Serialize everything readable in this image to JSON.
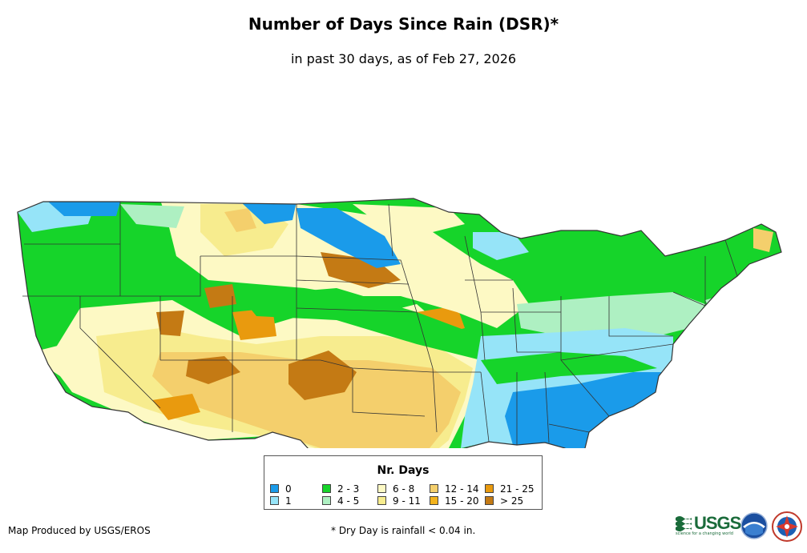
{
  "header": {
    "title": "Number of Days Since Rain (DSR)*",
    "subtitle": "in past 30 days, as of Feb 27, 2026"
  },
  "legend": {
    "title": "Nr. Days",
    "items": [
      {
        "label": "0",
        "color": "#1a9bea"
      },
      {
        "label": "1",
        "color": "#96e4f8"
      },
      {
        "label": "2 - 3",
        "color": "#16d42a"
      },
      {
        "label": "4 - 5",
        "color": "#aef0c2"
      },
      {
        "label": "6 - 8",
        "color": "#fdf9c4"
      },
      {
        "label": "9 - 11",
        "color": "#f7ec8e"
      },
      {
        "label": "12 - 14",
        "color": "#f4cf6c"
      },
      {
        "label": "15 - 20",
        "color": "#f3b31c"
      },
      {
        "label": "21 - 25",
        "color": "#e99a0e"
      },
      {
        "label": "> 25",
        "color": "#c47a14"
      }
    ]
  },
  "footer": {
    "credit": "Map Produced by USGS/EROS",
    "note": "* Dry Day is rainfall < 0.04 in."
  },
  "logos": {
    "usgs": "USGS",
    "usgs_tagline": "science for a changing world",
    "noaa_icon": "noaa-logo-icon",
    "nws_icon": "nws-logo-icon"
  }
}
